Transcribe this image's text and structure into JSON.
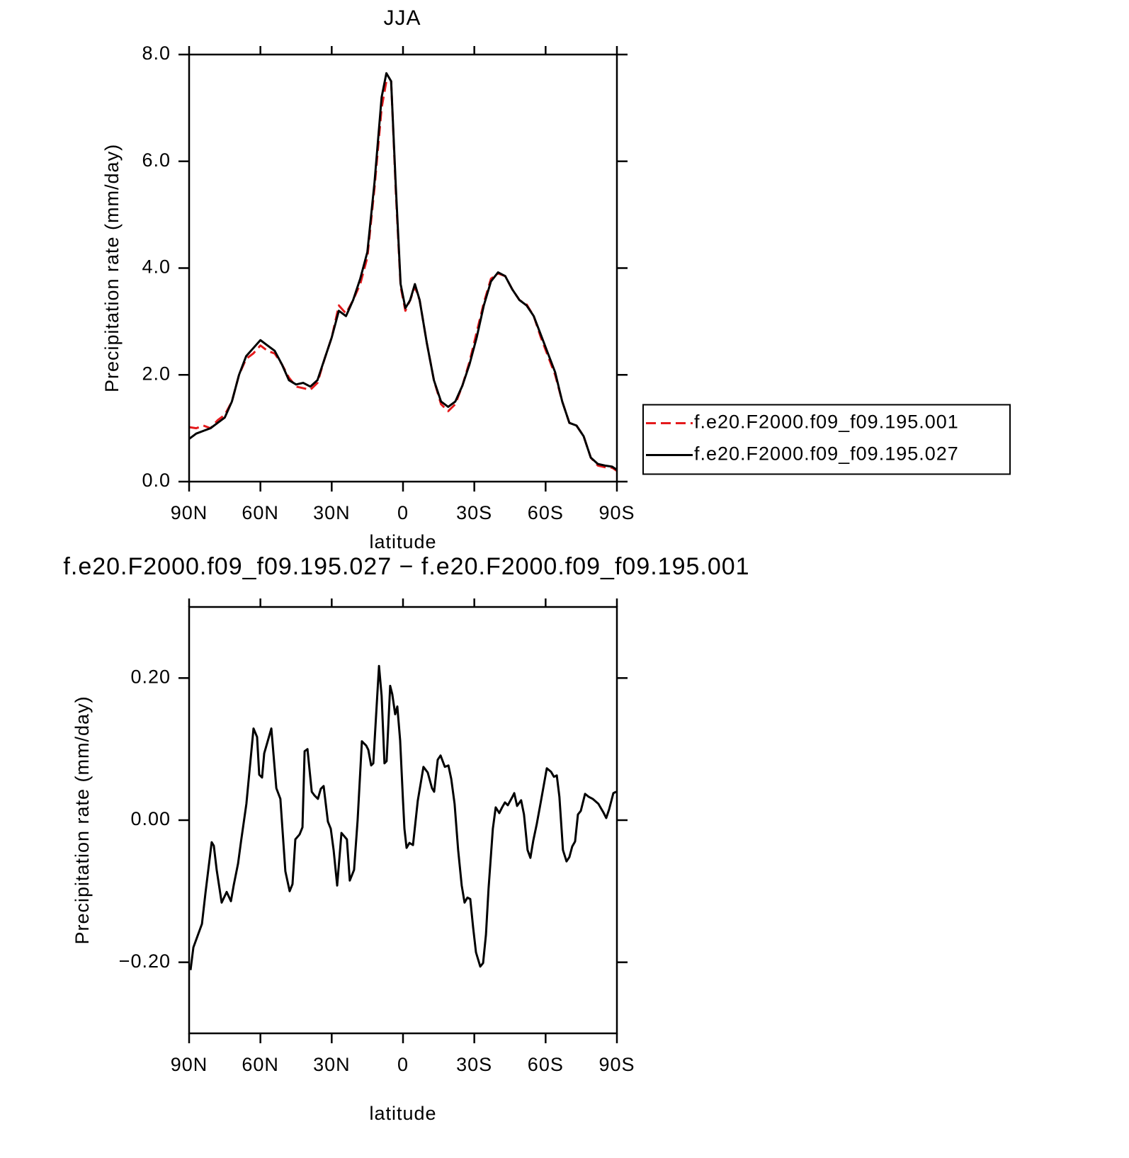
{
  "chart_data": [
    {
      "type": "line",
      "title": "JJA",
      "xlabel": "latitude",
      "ylabel": "Precipitation rate (mm/day)",
      "x": [
        90,
        87,
        84,
        81,
        78,
        75,
        72,
        69,
        66,
        63,
        60,
        57,
        54,
        51,
        48,
        45,
        42,
        39,
        36,
        33,
        30,
        27,
        24,
        21,
        18,
        15,
        12,
        9,
        7,
        5,
        3,
        1,
        -1,
        -3,
        -5,
        -7,
        -10,
        -13,
        -16,
        -19,
        -22,
        -25,
        -28,
        -31,
        -34,
        -37,
        -40,
        -43,
        -46,
        -49,
        -52,
        -55,
        -58,
        -61,
        -64,
        -67,
        -70,
        -73,
        -76,
        -79,
        -82,
        -85,
        -88,
        -90
      ],
      "series": [
        {
          "name": "f.e20.F2000.f09_f09.195.001",
          "color": "#e41a1c",
          "line_style": "dashed",
          "values": [
            1.02,
            1.0,
            1.05,
            1.0,
            1.15,
            1.25,
            1.5,
            2.0,
            2.3,
            2.4,
            2.55,
            2.45,
            2.4,
            2.2,
            1.95,
            1.78,
            1.75,
            1.72,
            1.85,
            2.3,
            2.7,
            3.3,
            3.15,
            3.4,
            3.7,
            4.2,
            5.5,
            7.0,
            7.5,
            7.5,
            5.4,
            3.65,
            3.2,
            3.4,
            3.65,
            3.4,
            2.6,
            1.9,
            1.45,
            1.32,
            1.45,
            1.8,
            2.25,
            2.8,
            3.35,
            3.8,
            3.9,
            3.85,
            3.6,
            3.4,
            3.32,
            3.1,
            2.7,
            2.35,
            2.0,
            1.5,
            1.1,
            1.05,
            0.85,
            0.45,
            0.3,
            0.27,
            0.26,
            0.2
          ]
        },
        {
          "name": "f.e20.F2000.f09_f09.195.027",
          "color": "#000000",
          "line_style": "solid",
          "values": [
            0.8,
            0.9,
            0.95,
            1.0,
            1.1,
            1.2,
            1.5,
            2.0,
            2.35,
            2.5,
            2.65,
            2.55,
            2.45,
            2.2,
            1.9,
            1.82,
            1.85,
            1.78,
            1.9,
            2.3,
            2.7,
            3.2,
            3.1,
            3.4,
            3.8,
            4.3,
            5.6,
            7.2,
            7.65,
            7.5,
            5.5,
            3.7,
            3.25,
            3.4,
            3.7,
            3.4,
            2.6,
            1.9,
            1.5,
            1.4,
            1.5,
            1.8,
            2.2,
            2.7,
            3.3,
            3.75,
            3.92,
            3.85,
            3.6,
            3.4,
            3.3,
            3.1,
            2.75,
            2.4,
            2.05,
            1.5,
            1.1,
            1.05,
            0.85,
            0.45,
            0.33,
            0.3,
            0.28,
            0.22
          ]
        }
      ],
      "xlim": [
        90,
        -90
      ],
      "xticks": [
        {
          "value": 90,
          "label": "90N"
        },
        {
          "value": 60,
          "label": "60N"
        },
        {
          "value": 30,
          "label": "30N"
        },
        0,
        {
          "value": -30,
          "label": "30S"
        },
        {
          "value": -60,
          "label": "60S"
        },
        {
          "value": -90,
          "label": "90S"
        }
      ],
      "ylim": [
        0,
        8
      ],
      "yticks": [
        {
          "value": 0,
          "label": "0.0"
        },
        {
          "value": 2,
          "label": "2.0"
        },
        {
          "value": 4,
          "label": "4.0"
        },
        {
          "value": 6,
          "label": "6.0"
        },
        {
          "value": 8,
          "label": "8.0"
        }
      ],
      "legend": "right"
    },
    {
      "type": "line",
      "title": "f.e20.F2000.f09_f09.195.027 − f.e20.F2000.f09_f09.195.001",
      "xlabel": "latitude",
      "ylabel": "Precipitation rate (mm/day)",
      "x": [
        89.4,
        88.2,
        84.6,
        83.1,
        80.5,
        79.6,
        78.4,
        76.3,
        74.2,
        72.4,
        71.2,
        69.4,
        68.2,
        65.9,
        62.9,
        61.4,
        60.5,
        59.3,
        58.4,
        55.4,
        53.3,
        51.6,
        49.5,
        47.7,
        46.5,
        45.3,
        43.5,
        42.3,
        41.4,
        40.2,
        38.4,
        37.3,
        35.8,
        34.6,
        33.4,
        31.6,
        30.4,
        29.2,
        27.7,
        25.9,
        23.6,
        22.4,
        20.6,
        19.1,
        17.3,
        15.5,
        14.6,
        13.4,
        12.5,
        11.3,
        10.1,
        9.0,
        7.8,
        6.9,
        5.4,
        4.5,
        3.3,
        2.4,
        1.2,
        0.0,
        -0.6,
        -1.5,
        -2.7,
        -4.2,
        -6.2,
        -8.6,
        -10.4,
        -12.2,
        -13.1,
        -14.6,
        -15.8,
        -17.6,
        -19.1,
        -20.3,
        -21.7,
        -23.2,
        -24.7,
        -25.9,
        -27.1,
        -28.3,
        -29.5,
        -30.7,
        -32.5,
        -33.7,
        -34.9,
        -36.0,
        -37.8,
        -39.0,
        -40.5,
        -41.7,
        -42.9,
        -44.1,
        -45.9,
        -46.8,
        -48.0,
        -49.7,
        -50.9,
        -52.4,
        -53.6,
        -54.8,
        -56.3,
        -58.1,
        -60.5,
        -62.3,
        -63.5,
        -64.7,
        -65.8,
        -67.3,
        -68.8,
        -70.0,
        -71.2,
        -72.4,
        -73.6,
        -74.8,
        -76.6,
        -78.1,
        -79.8,
        -82.2,
        -84.3,
        -85.5,
        -86.7,
        -88.5,
        -89.7
      ],
      "values": [
        -0.211,
        -0.179,
        -0.146,
        -0.102,
        -0.031,
        -0.036,
        -0.07,
        -0.116,
        -0.101,
        -0.114,
        -0.091,
        -0.061,
        -0.031,
        0.023,
        0.129,
        0.117,
        0.064,
        0.06,
        0.094,
        0.129,
        0.045,
        0.03,
        -0.072,
        -0.1,
        -0.09,
        -0.027,
        -0.02,
        -0.01,
        0.097,
        0.1,
        0.04,
        0.035,
        0.03,
        0.044,
        0.048,
        -0.002,
        -0.012,
        -0.042,
        -0.092,
        -0.018,
        -0.027,
        -0.085,
        -0.07,
        0,
        0.111,
        0.105,
        0.099,
        0.077,
        0.08,
        0.149,
        0.217,
        0.175,
        0.08,
        0.083,
        0.189,
        0.177,
        0.149,
        0.16,
        0.112,
        0.027,
        -0.012,
        -0.039,
        -0.032,
        -0.035,
        0.027,
        0.075,
        0.067,
        0.045,
        0.04,
        0.085,
        0.091,
        0.075,
        0.077,
        0.058,
        0.023,
        -0.042,
        -0.092,
        -0.116,
        -0.109,
        -0.111,
        -0.151,
        -0.186,
        -0.206,
        -0.201,
        -0.161,
        -0.096,
        -0.012,
        0.018,
        0.01,
        0.018,
        0.025,
        0.021,
        0.032,
        0.038,
        0.02,
        0.028,
        0.008,
        -0.042,
        -0.053,
        -0.029,
        -0.005,
        0.028,
        0.073,
        0.068,
        0.061,
        0.063,
        0.033,
        -0.042,
        -0.058,
        -0.052,
        -0.037,
        -0.03,
        0.008,
        0.013,
        0.037,
        0.033,
        0.03,
        0.023,
        0.011,
        0.003,
        0.015,
        0.038,
        0.04
      ],
      "color": "#000000",
      "xlim": [
        90,
        -90
      ],
      "xticks": [
        {
          "value": 90,
          "label": "90N"
        },
        {
          "value": 60,
          "label": "60N"
        },
        {
          "value": 30,
          "label": "30N"
        },
        0,
        {
          "value": -30,
          "label": "30S"
        },
        {
          "value": -60,
          "label": "60S"
        },
        {
          "value": -90,
          "label": "90S"
        }
      ],
      "ylim": [
        -0.3,
        0.3
      ],
      "yticks": [
        {
          "value": -0.2,
          "label": "−0.20"
        },
        {
          "value": 0,
          "label": "0.00"
        },
        {
          "value": 0.2,
          "label": "0.20"
        }
      ]
    }
  ]
}
